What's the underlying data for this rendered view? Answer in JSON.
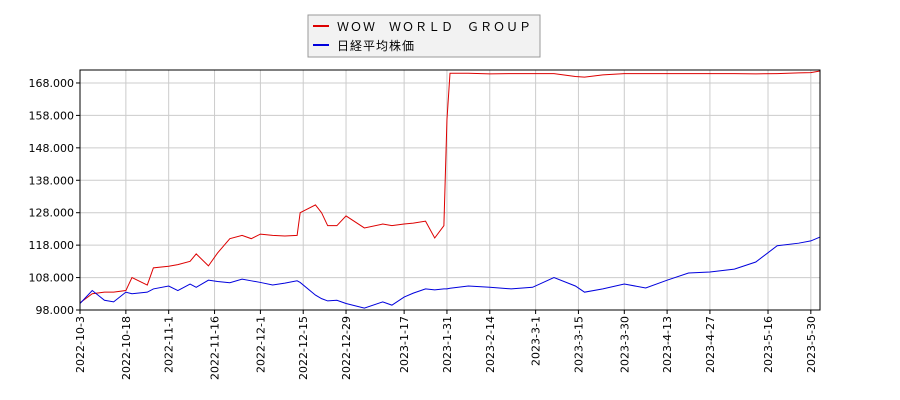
{
  "chart_data": {
    "type": "line",
    "x": [
      "2022-10-3",
      "2022-10-7",
      "2022-10-11",
      "2022-10-14",
      "2022-10-18",
      "2022-10-20",
      "2022-10-25",
      "2022-10-27",
      "2022-11-1",
      "2022-11-4",
      "2022-11-8",
      "2022-11-10",
      "2022-11-14",
      "2022-11-17",
      "2022-11-21",
      "2022-11-25",
      "2022-11-28",
      "2022-12-1",
      "2022-12-5",
      "2022-12-9",
      "2022-12-13",
      "2022-12-14",
      "2022-12-19",
      "2022-12-21",
      "2022-12-23",
      "2022-12-26",
      "2022-12-29",
      "2023-1-4",
      "2023-1-10",
      "2023-1-13",
      "2023-1-17",
      "2023-1-20",
      "2023-1-24",
      "2023-1-27",
      "2023-1-30",
      "2023-1-31",
      "2023-2-1",
      "2023-2-7",
      "2023-2-14",
      "2023-2-21",
      "2023-2-28",
      "2023-3-7",
      "2023-3-14",
      "2023-3-17",
      "2023-3-23",
      "2023-3-30",
      "2023-4-6",
      "2023-4-13",
      "2023-4-20",
      "2023-4-27",
      "2023-5-5",
      "2023-5-12",
      "2023-5-19",
      "2023-5-26",
      "2023-5-30",
      "2023-6-2"
    ],
    "series": [
      {
        "name": "ＷＯＷ　ＷＯＲＬＤ　ＧＲＯＵＰ",
        "color": "#dd0000",
        "values": [
          100.2,
          103,
          103.5,
          103.5,
          104,
          108,
          105.7,
          111,
          111.5,
          112,
          113,
          115.3,
          111.6,
          115.6,
          120,
          121,
          120,
          121.4,
          121,
          120.8,
          121,
          128,
          130.4,
          128,
          124,
          124,
          127,
          123.3,
          124.5,
          124,
          124.5,
          124.8,
          125.4,
          120.2,
          124,
          156.6,
          171,
          171,
          170.8,
          170.9,
          170.9,
          170.9,
          170,
          169.8,
          170.5,
          170.9,
          170.9,
          170.9,
          170.9,
          170.9,
          170.9,
          170.8,
          170.9,
          171.1,
          171.2,
          171.7
        ]
      },
      {
        "name": "日経平均株価",
        "color": "#0000dd",
        "values": [
          100,
          104,
          101,
          100.5,
          103.5,
          103,
          103.5,
          104.5,
          105.4,
          104,
          106,
          105,
          107.2,
          106.8,
          106.4,
          107.5,
          107,
          106.5,
          105.7,
          106.3,
          107,
          106.5,
          102.6,
          101.5,
          100.8,
          101,
          100,
          98.6,
          100.5,
          99.5,
          102,
          103.2,
          104.5,
          104.2,
          104.5,
          104.5,
          104.7,
          105.4,
          105,
          104.5,
          105,
          108,
          105.4,
          103.5,
          104.5,
          106,
          104.8,
          107.2,
          109.4,
          109.7,
          110.6,
          112.8,
          117.8,
          118.6,
          119.3,
          120.5
        ]
      }
    ],
    "xlim": [
      "2022-10-3",
      "2023-6-2"
    ],
    "xticks": [
      "2022-10-3",
      "2022-10-18",
      "2022-11-1",
      "2022-11-16",
      "2022-12-1",
      "2022-12-15",
      "2022-12-29",
      "2023-1-17",
      "2023-1-31",
      "2023-2-14",
      "2023-3-1",
      "2023-3-15",
      "2023-3-30",
      "2023-4-13",
      "2023-4-27",
      "2023-5-16",
      "2023-5-30"
    ],
    "ylim": [
      98,
      172
    ],
    "yticks": [
      {
        "value": 98,
        "label": "98.000"
      },
      {
        "value": 108,
        "label": "108.000"
      },
      {
        "value": 118,
        "label": "118.000"
      },
      {
        "value": 128,
        "label": "128.000"
      },
      {
        "value": 138,
        "label": "138.000"
      },
      {
        "value": 148,
        "label": "148.000"
      },
      {
        "value": 158,
        "label": "158.000"
      },
      {
        "value": 168,
        "label": "168.000"
      }
    ],
    "grid": true
  }
}
